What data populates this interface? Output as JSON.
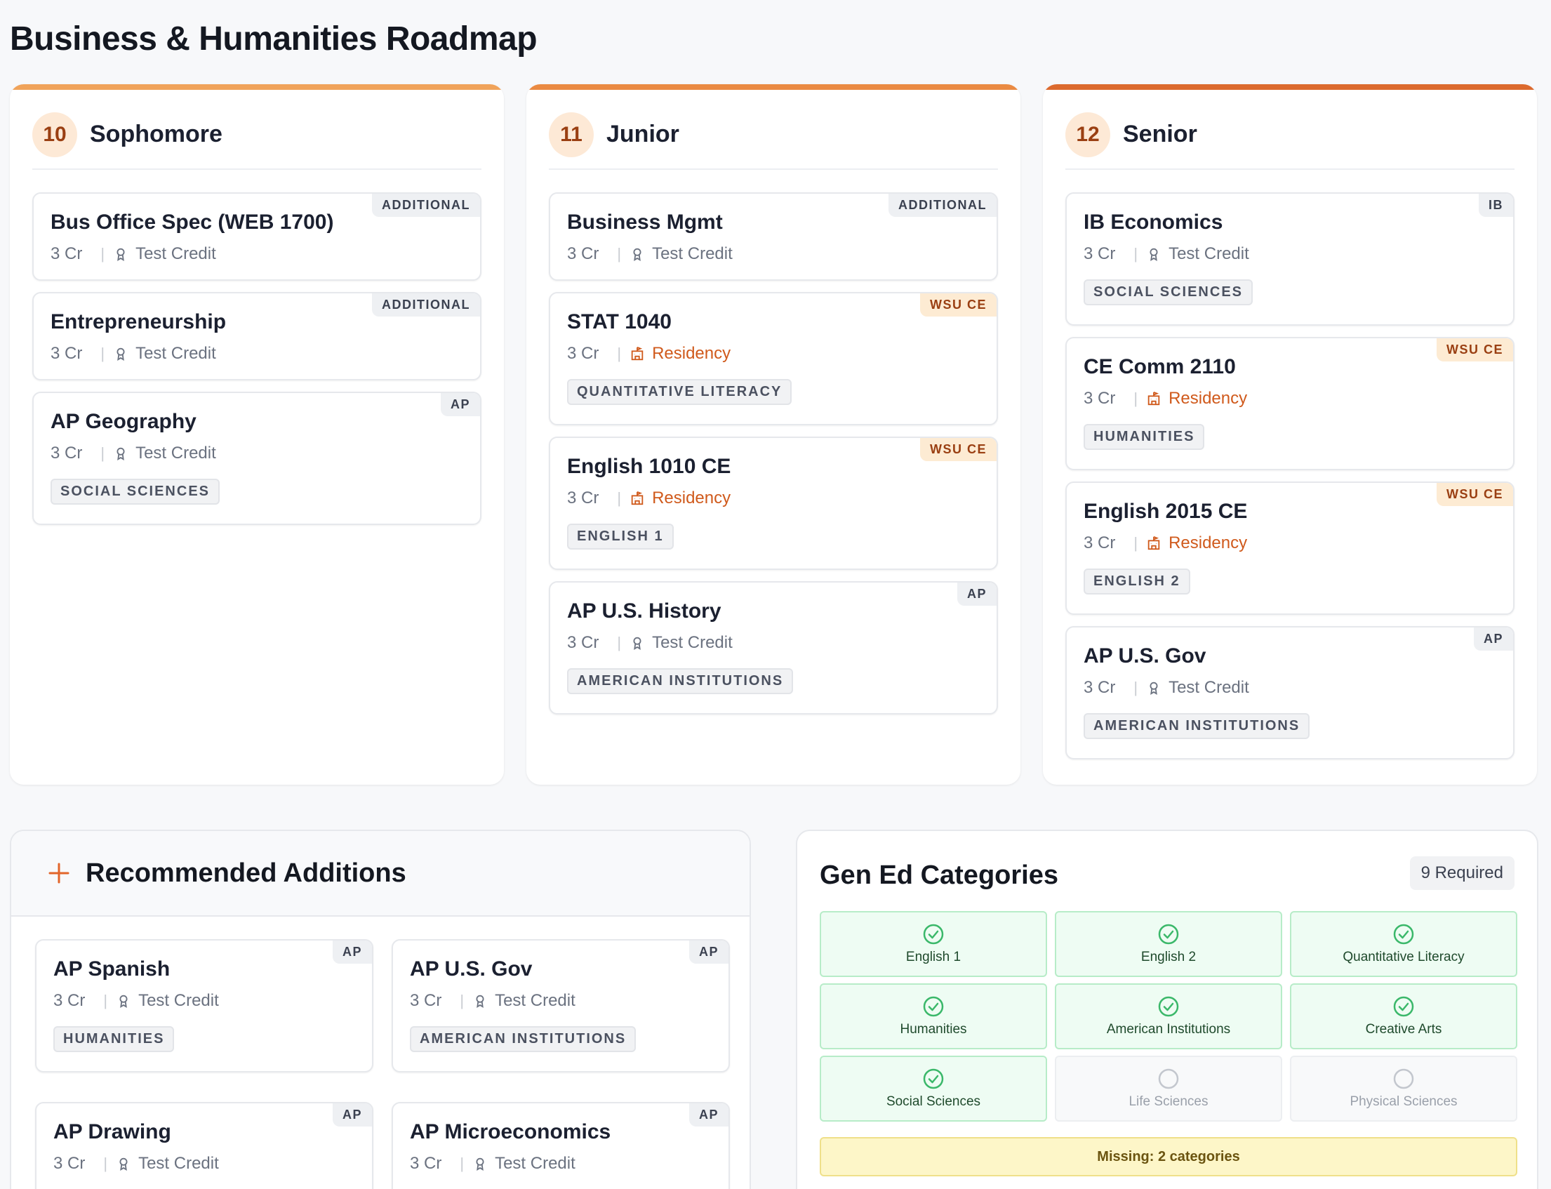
{
  "page": {
    "title": "Business & Humanities Roadmap"
  },
  "colors": {
    "accent": "#e8782e",
    "residency": "#d05a1c",
    "met": "#3bb86a"
  },
  "years": [
    {
      "num": "10",
      "name": "Sophomore",
      "bar": "#f0a35a",
      "courses": [
        {
          "name": "Bus Office Spec (WEB 1700)",
          "credits": "3 Cr",
          "credit_type": "Test Credit",
          "credit_icon": "award-icon",
          "badge": "ADDITIONAL",
          "category": ""
        },
        {
          "name": "Entrepreneurship",
          "credits": "3 Cr",
          "credit_type": "Test Credit",
          "credit_icon": "award-icon",
          "badge": "ADDITIONAL",
          "category": ""
        },
        {
          "name": "AP Geography",
          "credits": "3 Cr",
          "credit_type": "Test Credit",
          "credit_icon": "award-icon",
          "badge": "AP",
          "category": "SOCIAL SCIENCES"
        }
      ]
    },
    {
      "num": "11",
      "name": "Junior",
      "bar": "#ea8a42",
      "courses": [
        {
          "name": "Business Mgmt",
          "credits": "3 Cr",
          "credit_type": "Test Credit",
          "credit_icon": "award-icon",
          "badge": "ADDITIONAL",
          "category": ""
        },
        {
          "name": "STAT 1040",
          "credits": "3 Cr",
          "credit_type": "Residency",
          "credit_icon": "building-icon",
          "badge": "WSU CE",
          "category": "QUANTITATIVE LITERACY"
        },
        {
          "name": "English 1010 CE",
          "credits": "3 Cr",
          "credit_type": "Residency",
          "credit_icon": "building-icon",
          "badge": "WSU CE",
          "category": "ENGLISH 1"
        },
        {
          "name": "AP U.S. History",
          "credits": "3 Cr",
          "credit_type": "Test Credit",
          "credit_icon": "award-icon",
          "badge": "AP",
          "category": "AMERICAN INSTITUTIONS"
        }
      ]
    },
    {
      "num": "12",
      "name": "Senior",
      "bar": "#dc6a2e",
      "courses": [
        {
          "name": "IB Economics",
          "credits": "3 Cr",
          "credit_type": "Test Credit",
          "credit_icon": "award-icon",
          "badge": "IB",
          "category": "SOCIAL SCIENCES"
        },
        {
          "name": "CE Comm 2110",
          "credits": "3 Cr",
          "credit_type": "Residency",
          "credit_icon": "building-icon",
          "badge": "WSU CE",
          "category": "HUMANITIES"
        },
        {
          "name": "English 2015 CE",
          "credits": "3 Cr",
          "credit_type": "Residency",
          "credit_icon": "building-icon",
          "badge": "WSU CE",
          "category": "ENGLISH 2"
        },
        {
          "name": "AP U.S. Gov",
          "credits": "3 Cr",
          "credit_type": "Test Credit",
          "credit_icon": "award-icon",
          "badge": "AP",
          "category": "AMERICAN INSTITUTIONS"
        }
      ]
    }
  ],
  "recommended": {
    "title": "Recommended Additions",
    "icon": "plus-icon",
    "courses": [
      {
        "name": "AP Spanish",
        "credits": "3 Cr",
        "credit_type": "Test Credit",
        "badge": "AP",
        "category": "HUMANITIES"
      },
      {
        "name": "AP U.S. Gov",
        "credits": "3 Cr",
        "credit_type": "Test Credit",
        "badge": "AP",
        "category": "AMERICAN INSTITUTIONS"
      },
      {
        "name": "AP Drawing",
        "credits": "3 Cr",
        "credit_type": "Test Credit",
        "badge": "AP",
        "category": ""
      },
      {
        "name": "AP Microeconomics",
        "credits": "3 Cr",
        "credit_type": "Test Credit",
        "badge": "AP",
        "category": ""
      }
    ]
  },
  "gen_ed": {
    "title": "Gen Ed Categories",
    "required_label": "9 Required",
    "categories": [
      {
        "label": "English 1",
        "met": true
      },
      {
        "label": "English 2",
        "met": true
      },
      {
        "label": "Quantitative Literacy",
        "met": true
      },
      {
        "label": "Humanities",
        "met": true
      },
      {
        "label": "American Institutions",
        "met": true
      },
      {
        "label": "Creative Arts",
        "met": true
      },
      {
        "label": "Social Sciences",
        "met": true
      },
      {
        "label": "Life Sciences",
        "met": false
      },
      {
        "label": "Physical Sciences",
        "met": false
      }
    ],
    "missing_label": "Missing: 2 categories"
  }
}
